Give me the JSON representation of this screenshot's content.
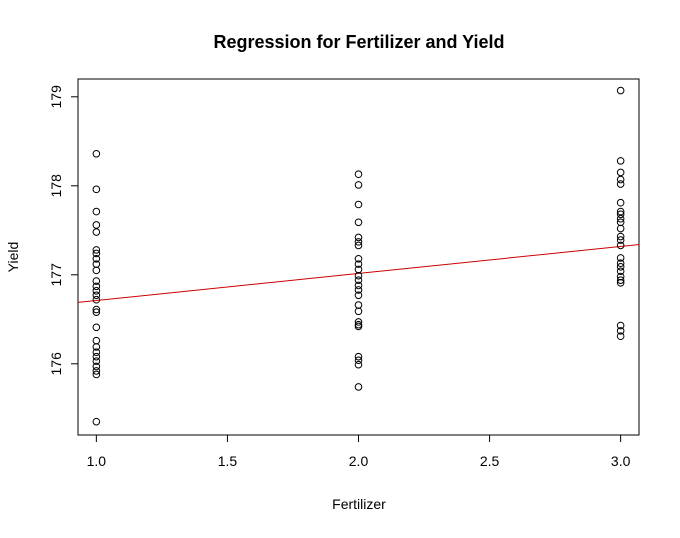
{
  "chart_data": {
    "type": "scatter",
    "title": "Regression for Fertilizer and Yield",
    "xlabel": "Fertilizer",
    "ylabel": "Yield",
    "xlim": [
      0.93,
      3.07
    ],
    "ylim": [
      175.2,
      179.2
    ],
    "x_ticks": [
      "1.0",
      "1.5",
      "2.0",
      "2.5",
      "3.0"
    ],
    "y_ticks": [
      "176",
      "177",
      "178",
      "179"
    ],
    "grid": false,
    "points": {
      "x1": [
        178.36,
        177.96,
        177.71,
        177.56,
        177.48,
        177.28,
        177.24,
        177.18,
        177.12,
        177.05,
        176.93,
        176.87,
        176.82,
        176.77,
        176.72,
        176.61,
        176.58,
        176.41,
        176.26,
        176.19,
        176.13,
        176.08,
        176.03,
        175.97,
        175.92,
        175.88,
        175.35
      ],
      "x2": [
        178.13,
        178.01,
        177.79,
        177.59,
        177.42,
        177.37,
        177.33,
        177.18,
        177.12,
        177.06,
        176.99,
        176.94,
        176.88,
        176.83,
        176.77,
        176.66,
        176.59,
        176.47,
        176.44,
        176.42,
        176.08,
        176.04,
        175.99,
        175.74
      ],
      "x3": [
        179.07,
        178.28,
        178.15,
        178.07,
        178.02,
        177.81,
        177.71,
        177.68,
        177.63,
        177.59,
        177.52,
        177.43,
        177.39,
        177.33,
        177.19,
        177.13,
        177.09,
        177.04,
        176.98,
        176.94,
        176.91,
        176.43,
        176.37,
        176.31
      ]
    },
    "series": [
      {
        "type": "regression-line",
        "x": [
          0.93,
          3.07
        ],
        "y": [
          176.69,
          177.34
        ],
        "color": "#cc0000"
      }
    ],
    "point_color": "#000000"
  }
}
